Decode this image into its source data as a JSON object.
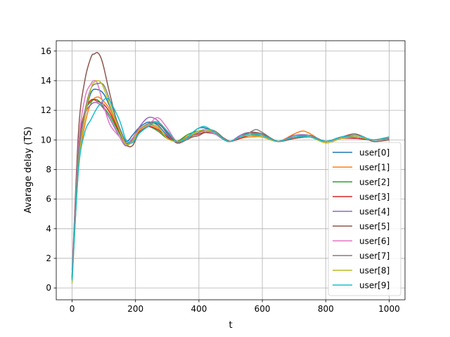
{
  "chart_data": {
    "type": "line",
    "title": "",
    "xlabel": "t",
    "ylabel": "Avarage delay (TS)",
    "xlim": [
      -50,
      1050
    ],
    "ylim": [
      -0.8,
      16.7
    ],
    "xticks": [
      0,
      200,
      400,
      600,
      800,
      1000
    ],
    "yticks": [
      0,
      2,
      4,
      6,
      8,
      10,
      12,
      14,
      16
    ],
    "grid": true,
    "legend_position": "lower right",
    "series": [
      {
        "name": "user[0]",
        "color": "#1f77b4",
        "x": [
          0,
          20,
          40,
          60,
          80,
          100,
          120,
          150,
          170,
          190,
          210,
          240,
          270,
          300,
          330,
          360,
          380,
          400,
          420,
          450,
          480,
          500,
          530,
          560,
          600,
          650,
          700,
          750,
          800,
          850,
          900,
          950,
          1000
        ],
        "values": [
          0.6,
          8.5,
          11.5,
          13.2,
          13.4,
          13.1,
          12.2,
          10.8,
          9.9,
          10.3,
          10.8,
          11.2,
          11.0,
          10.3,
          9.9,
          10.1,
          10.5,
          10.8,
          10.8,
          10.5,
          10.0,
          9.9,
          10.1,
          10.3,
          10.3,
          9.9,
          10.2,
          10.3,
          9.9,
          10.2,
          10.1,
          10.0,
          10.2
        ]
      },
      {
        "name": "user[1]",
        "color": "#ff7f0e",
        "x": [
          0,
          20,
          40,
          60,
          80,
          100,
          120,
          150,
          170,
          190,
          210,
          240,
          270,
          300,
          330,
          360,
          380,
          400,
          420,
          450,
          480,
          500,
          530,
          560,
          600,
          650,
          700,
          730,
          760,
          800,
          850,
          900,
          950,
          1000
        ],
        "values": [
          0.5,
          8.0,
          11.0,
          12.5,
          12.9,
          12.6,
          12.0,
          10.6,
          9.8,
          10.1,
          10.7,
          11.0,
          10.8,
          10.2,
          9.9,
          10.2,
          10.4,
          10.6,
          10.5,
          10.4,
          10.0,
          9.9,
          10.1,
          10.2,
          10.2,
          9.9,
          10.4,
          10.6,
          10.3,
          9.8,
          10.1,
          10.2,
          10.0,
          10.1
        ]
      },
      {
        "name": "user[2]",
        "color": "#2ca02c",
        "x": [
          0,
          20,
          40,
          60,
          80,
          100,
          120,
          150,
          170,
          190,
          210,
          240,
          270,
          300,
          330,
          360,
          380,
          400,
          420,
          450,
          480,
          500,
          530,
          560,
          600,
          650,
          700,
          750,
          800,
          850,
          900,
          950,
          1000
        ],
        "values": [
          0.7,
          9.0,
          11.8,
          12.6,
          12.7,
          12.2,
          11.6,
          10.4,
          9.7,
          10.0,
          10.6,
          10.9,
          10.6,
          10.1,
          9.9,
          10.3,
          10.5,
          10.6,
          10.6,
          10.5,
          10.1,
          9.9,
          10.2,
          10.4,
          10.2,
          9.9,
          10.2,
          10.3,
          9.9,
          10.2,
          10.2,
          10.0,
          10.1
        ]
      },
      {
        "name": "user[3]",
        "color": "#d62728",
        "x": [
          0,
          20,
          40,
          60,
          80,
          100,
          120,
          150,
          170,
          190,
          210,
          240,
          270,
          300,
          330,
          360,
          380,
          400,
          420,
          450,
          480,
          500,
          530,
          560,
          600,
          650,
          700,
          750,
          800,
          850,
          900,
          950,
          1000
        ],
        "values": [
          0.8,
          9.3,
          11.9,
          12.7,
          12.6,
          12.4,
          11.8,
          10.5,
          9.7,
          9.9,
          10.5,
          10.9,
          10.7,
          10.2,
          9.9,
          10.1,
          10.3,
          10.4,
          10.5,
          10.4,
          10.1,
          9.9,
          10.1,
          10.3,
          10.2,
          9.9,
          10.1,
          10.2,
          9.9,
          10.1,
          10.1,
          10.0,
          10.1
        ]
      },
      {
        "name": "user[4]",
        "color": "#9467bd",
        "x": [
          0,
          20,
          40,
          60,
          80,
          100,
          120,
          150,
          170,
          190,
          210,
          240,
          270,
          300,
          330,
          360,
          380,
          400,
          420,
          450,
          480,
          500,
          530,
          560,
          600,
          650,
          700,
          750,
          800,
          850,
          900,
          950,
          1000
        ],
        "values": [
          0.6,
          8.8,
          11.6,
          12.4,
          12.5,
          12.1,
          11.4,
          10.2,
          9.6,
          10.0,
          10.8,
          11.5,
          11.3,
          10.4,
          9.8,
          10.0,
          10.3,
          10.5,
          10.6,
          10.4,
          10.0,
          9.9,
          10.3,
          10.5,
          10.3,
          9.9,
          10.3,
          10.3,
          9.9,
          10.2,
          10.2,
          10.0,
          10.2
        ]
      },
      {
        "name": "user[5]",
        "color": "#8c564b",
        "x": [
          0,
          20,
          40,
          60,
          70,
          80,
          90,
          100,
          120,
          150,
          170,
          190,
          210,
          240,
          270,
          300,
          330,
          360,
          380,
          400,
          420,
          450,
          480,
          500,
          530,
          560,
          600,
          650,
          700,
          750,
          800,
          850,
          890,
          920,
          950,
          1000
        ],
        "values": [
          0.7,
          10.5,
          14.0,
          15.6,
          15.8,
          15.9,
          15.6,
          14.9,
          13.0,
          10.6,
          9.7,
          9.6,
          10.4,
          11.0,
          11.1,
          10.5,
          9.8,
          10.0,
          10.2,
          10.3,
          10.5,
          10.4,
          10.1,
          9.9,
          10.2,
          10.5,
          10.4,
          9.9,
          10.1,
          10.2,
          9.9,
          10.2,
          10.4,
          10.2,
          9.9,
          10.0
        ]
      },
      {
        "name": "user[6]",
        "color": "#e377c2",
        "x": [
          0,
          20,
          40,
          60,
          70,
          80,
          100,
          120,
          150,
          170,
          190,
          210,
          240,
          270,
          300,
          330,
          360,
          380,
          400,
          420,
          450,
          480,
          500,
          530,
          560,
          600,
          650,
          700,
          750,
          800,
          850,
          900,
          950,
          1000
        ],
        "values": [
          1.2,
          9.5,
          12.8,
          13.8,
          14.0,
          13.8,
          12.3,
          11.0,
          10.2,
          9.7,
          10.1,
          10.6,
          11.0,
          11.5,
          10.8,
          9.9,
          10.0,
          10.3,
          10.5,
          10.6,
          10.4,
          10.0,
          9.9,
          10.2,
          10.4,
          10.3,
          9.9,
          10.2,
          10.2,
          9.9,
          10.1,
          10.2,
          10.0,
          10.1
        ]
      },
      {
        "name": "user[7]",
        "color": "#7f7f7f",
        "x": [
          0,
          20,
          40,
          60,
          80,
          100,
          120,
          150,
          170,
          190,
          210,
          240,
          270,
          300,
          330,
          360,
          380,
          400,
          420,
          450,
          480,
          500,
          530,
          560,
          580,
          600,
          650,
          700,
          750,
          800,
          850,
          900,
          950,
          1000
        ],
        "values": [
          0.9,
          9.0,
          11.9,
          13.5,
          13.8,
          13.7,
          12.6,
          10.8,
          9.8,
          9.9,
          10.6,
          11.1,
          11.2,
          10.6,
          9.9,
          10.0,
          10.3,
          10.5,
          10.7,
          10.6,
          10.1,
          9.9,
          10.2,
          10.5,
          10.7,
          10.5,
          9.9,
          10.2,
          10.3,
          9.9,
          10.2,
          10.2,
          10.0,
          10.1
        ]
      },
      {
        "name": "user[8]",
        "color": "#bcbd22",
        "x": [
          0,
          20,
          40,
          60,
          70,
          80,
          90,
          100,
          120,
          150,
          170,
          190,
          210,
          240,
          270,
          300,
          330,
          360,
          380,
          400,
          420,
          450,
          480,
          500,
          530,
          560,
          600,
          650,
          700,
          750,
          800,
          850,
          900,
          950,
          1000
        ],
        "values": [
          0.3,
          8.2,
          11.5,
          13.5,
          13.9,
          14.0,
          13.9,
          13.5,
          12.3,
          10.6,
          9.7,
          9.9,
          10.6,
          11.0,
          10.9,
          10.1,
          9.9,
          10.1,
          10.4,
          10.6,
          10.7,
          10.5,
          10.0,
          9.9,
          10.2,
          10.3,
          10.2,
          9.9,
          10.2,
          10.2,
          9.8,
          10.1,
          10.2,
          10.0,
          10.2
        ]
      },
      {
        "name": "user[9]",
        "color": "#17becf",
        "x": [
          0,
          20,
          40,
          60,
          80,
          100,
          110,
          120,
          150,
          170,
          190,
          210,
          240,
          270,
          300,
          330,
          360,
          380,
          400,
          420,
          450,
          480,
          500,
          530,
          560,
          600,
          650,
          700,
          750,
          800,
          850,
          900,
          950,
          1000
        ],
        "values": [
          0.5,
          8.0,
          10.5,
          11.4,
          12.2,
          12.7,
          12.8,
          12.6,
          11.3,
          10.0,
          9.8,
          10.4,
          10.9,
          11.2,
          10.6,
          9.9,
          10.1,
          10.5,
          10.8,
          10.9,
          10.5,
          10.0,
          9.9,
          10.2,
          10.4,
          10.3,
          9.9,
          10.2,
          10.2,
          9.9,
          10.2,
          10.3,
          10.0,
          10.2
        ]
      }
    ]
  }
}
